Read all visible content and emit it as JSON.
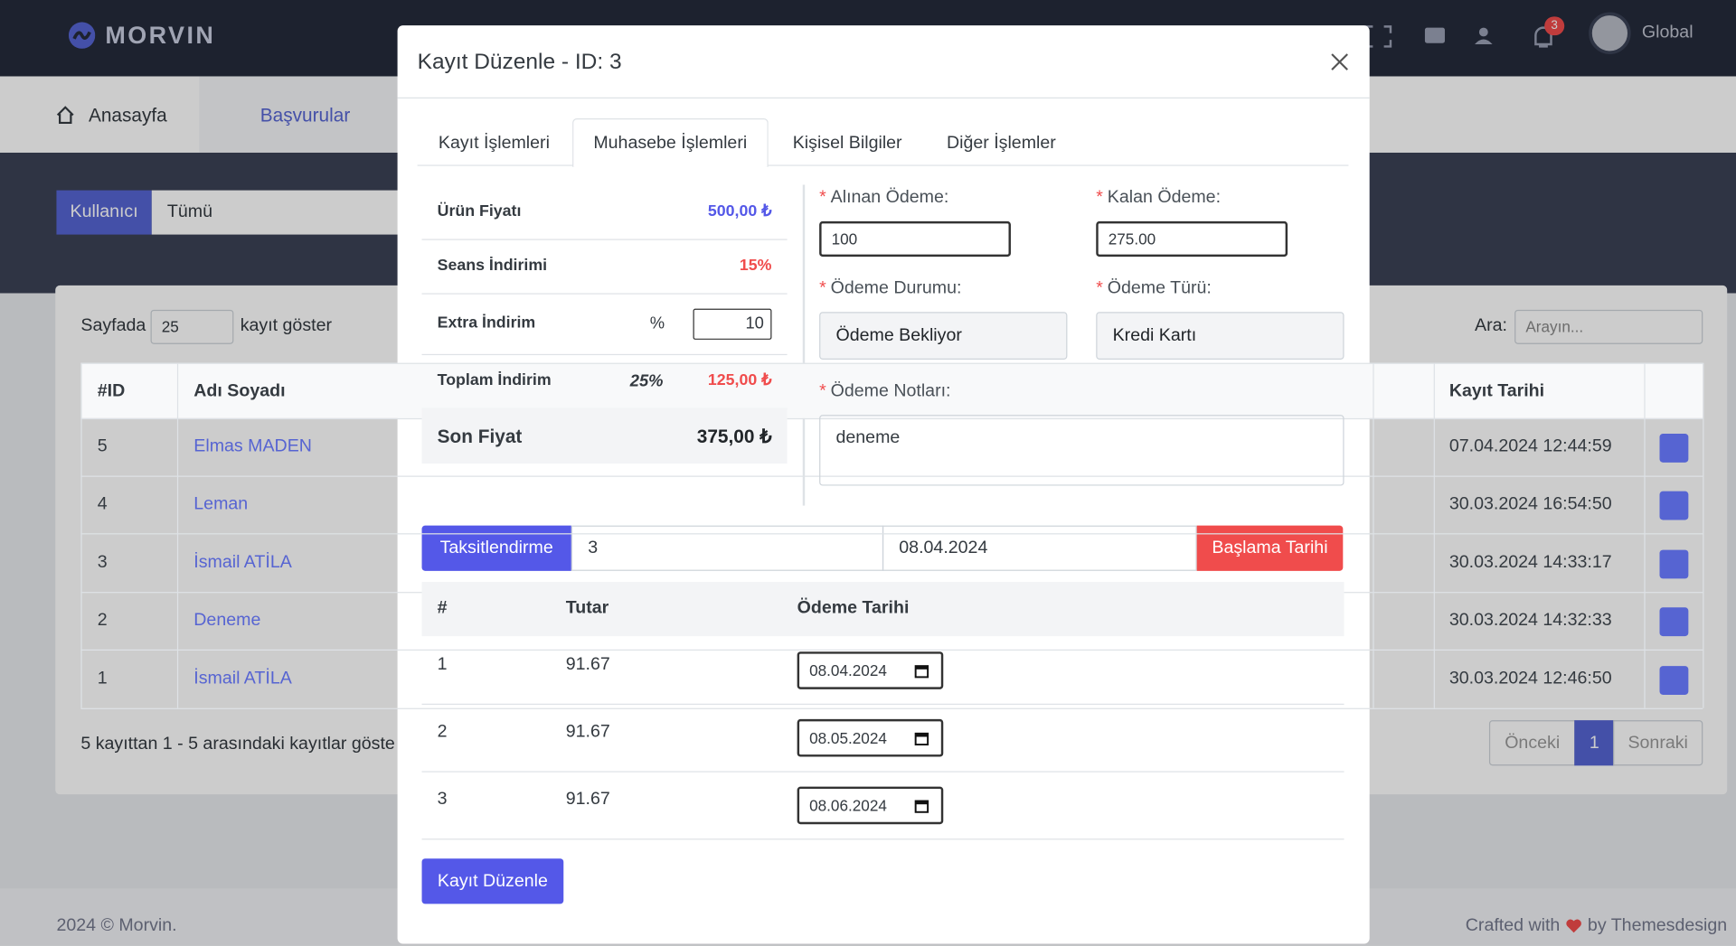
{
  "navbar": {
    "brand": "MORVIN",
    "notification_count": "3",
    "user": "Global"
  },
  "menu": [
    "Anasayfa",
    "Başvurular"
  ],
  "filter": {
    "label": "Kullanıcı",
    "value": "Tümü"
  },
  "table_controls": {
    "show_prefix": "Sayfada",
    "page_size": "25",
    "show_suffix": "kayıt göster",
    "search_label": "Ara:",
    "search_placeholder": "Arayın..."
  },
  "table": {
    "headers": [
      "#ID",
      "Adı Soyadı",
      "Kayıt Tarihi"
    ],
    "rows": [
      [
        "5",
        "Elmas MADEN",
        "07.04.2024 12:44:59"
      ],
      [
        "4",
        "Leman",
        "30.03.2024 16:54:50"
      ],
      [
        "3",
        "İsmail ATİLA",
        "30.03.2024 14:33:17"
      ],
      [
        "2",
        "Deneme",
        "30.03.2024 14:32:33"
      ],
      [
        "1",
        "İsmail ATİLA",
        "30.03.2024 12:46:50"
      ]
    ]
  },
  "info": "5 kayıttan 1 - 5 arasındaki kayıtlar göste",
  "pagination": [
    "Önceki",
    "1",
    "Sonraki"
  ],
  "footer": {
    "left": "2024 © Morvin.",
    "right_prefix": "Crafted with",
    "right_suffix": "by Themesdesign"
  },
  "modal": {
    "title": "Kayıt Düzenle - ID: 3",
    "tabs": [
      "Kayıt İşlemleri",
      "Muhasebe İşlemleri",
      "Kişisel Bilgiler",
      "Diğer İşlemler"
    ],
    "active_tab": 1,
    "summary": [
      {
        "label": "Ürün Fiyatı",
        "value": "500,00 ₺"
      },
      {
        "label": "Seans İndirimi",
        "value": "15%"
      },
      {
        "label": "Extra İndirim",
        "unit": "%",
        "value": "10"
      },
      {
        "label": "Toplam İndirim",
        "rate": "25%",
        "value": "125,00 ₺"
      },
      {
        "label": "Son Fiyat",
        "value": "375,00 ₺"
      }
    ],
    "required_mark": "*",
    "fields": {
      "received": {
        "label": "Alınan Ödeme:",
        "value": "100"
      },
      "remaining": {
        "label": "Kalan Ödeme:",
        "value": "275.00"
      },
      "status": {
        "label": "Ödeme Durumu:",
        "value": "Ödeme Bekliyor"
      },
      "type": {
        "label": "Ödeme Türü:",
        "value": "Kredi Kartı"
      },
      "notes": {
        "label": "Ödeme Notları:",
        "value": "deneme"
      }
    },
    "installment": {
      "button": "Taksitlendirme",
      "count": "3",
      "start_date": "08.04.2024",
      "date_button": "Başlama Tarihi"
    },
    "schedule": {
      "headers": [
        "#",
        "Tutar",
        "Ödeme Tarihi"
      ],
      "rows": [
        [
          "1",
          "91.67",
          "08.04.2024"
        ],
        [
          "2",
          "91.67",
          "08.05.2024"
        ],
        [
          "3",
          "91.67",
          "08.06.2024"
        ]
      ]
    },
    "submit": "Kayıt Düzenle"
  }
}
